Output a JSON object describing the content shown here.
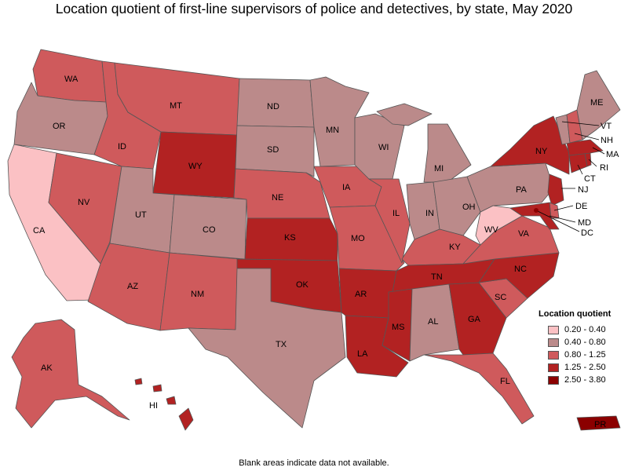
{
  "title": "Location quotient of first-line supervisors of police and detectives, by state, May 2020",
  "footnote": "Blank areas indicate data not available.",
  "legend": {
    "title": "Location quotient",
    "items": [
      {
        "label": "0.20 - 0.40",
        "color": "#fbc1c4"
      },
      {
        "label": "0.40 - 0.80",
        "color": "#bb8a8a"
      },
      {
        "label": "0.80 - 1.25",
        "color": "#cf5a5c"
      },
      {
        "label": "1.25 - 2.50",
        "color": "#b22222"
      },
      {
        "label": "2.50 - 3.80",
        "color": "#8b0000"
      }
    ]
  },
  "states": {
    "WA": {
      "label": "WA",
      "class": 2
    },
    "OR": {
      "label": "OR",
      "class": 1
    },
    "CA": {
      "label": "CA",
      "class": 0
    },
    "NV": {
      "label": "NV",
      "class": 2
    },
    "ID": {
      "label": "ID",
      "class": 2
    },
    "MT": {
      "label": "MT",
      "class": 2
    },
    "WY": {
      "label": "WY",
      "class": 3
    },
    "UT": {
      "label": "UT",
      "class": 1
    },
    "AZ": {
      "label": "AZ",
      "class": 2
    },
    "CO": {
      "label": "CO",
      "class": 1
    },
    "NM": {
      "label": "NM",
      "class": 2
    },
    "ND": {
      "label": "ND",
      "class": 1
    },
    "SD": {
      "label": "SD",
      "class": 1
    },
    "NE": {
      "label": "NE",
      "class": 2
    },
    "KS": {
      "label": "KS",
      "class": 3
    },
    "OK": {
      "label": "OK",
      "class": 3
    },
    "TX": {
      "label": "TX",
      "class": 1
    },
    "MN": {
      "label": "MN",
      "class": 1
    },
    "IA": {
      "label": "IA",
      "class": 2
    },
    "MO": {
      "label": "MO",
      "class": 2
    },
    "AR": {
      "label": "AR",
      "class": 3
    },
    "LA": {
      "label": "LA",
      "class": 3
    },
    "WI": {
      "label": "WI",
      "class": 1
    },
    "IL": {
      "label": "IL",
      "class": 2
    },
    "MI": {
      "label": "MI",
      "class": 1
    },
    "IN": {
      "label": "IN",
      "class": 1
    },
    "OH": {
      "label": "OH",
      "class": 1
    },
    "KY": {
      "label": "KY",
      "class": 2
    },
    "TN": {
      "label": "TN",
      "class": 3
    },
    "MS": {
      "label": "MS",
      "class": 3
    },
    "AL": {
      "label": "AL",
      "class": 1
    },
    "GA": {
      "label": "GA",
      "class": 3
    },
    "FL": {
      "label": "FL",
      "class": 2
    },
    "SC": {
      "label": "SC",
      "class": 2
    },
    "NC": {
      "label": "NC",
      "class": 3
    },
    "VA": {
      "label": "VA",
      "class": 2
    },
    "WV": {
      "label": "WV",
      "class": 0
    },
    "PA": {
      "label": "PA",
      "class": 1
    },
    "NY": {
      "label": "NY",
      "class": 3
    },
    "NJ": {
      "label": "NJ",
      "class": 3
    },
    "DE": {
      "label": "DE",
      "class": 2
    },
    "MD": {
      "label": "MD",
      "class": 3
    },
    "DC": {
      "label": "DC",
      "class": 4
    },
    "CT": {
      "label": "CT",
      "class": 3
    },
    "RI": {
      "label": "RI",
      "class": 3
    },
    "MA": {
      "label": "MA",
      "class": 3
    },
    "VT": {
      "label": "VT",
      "class": 1
    },
    "NH": {
      "label": "NH",
      "class": 2
    },
    "ME": {
      "label": "ME",
      "class": 1
    },
    "AK": {
      "label": "AK",
      "class": 2
    },
    "HI": {
      "label": "HI",
      "class": 3
    },
    "PR": {
      "label": "PR",
      "class": 4
    }
  }
}
